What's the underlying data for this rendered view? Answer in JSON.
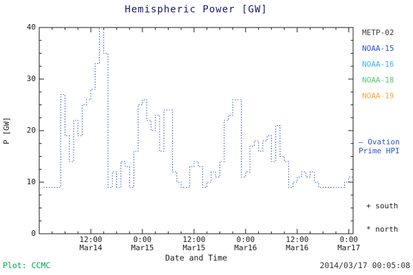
{
  "chart_data": {
    "type": "line",
    "title": "Hemispheric Power [GW]",
    "xlabel": "Date and Time",
    "ylabel": "P [GW]",
    "line": {
      "name": "Ovation Prime HPI",
      "color": "#3a5fcd",
      "style": "dotted-step"
    },
    "ylim": [
      0,
      40
    ],
    "xlim_hours": [
      0,
      73
    ],
    "yticks": [
      0,
      10,
      20,
      30,
      40
    ],
    "xticks": [
      {
        "hour": 12,
        "time": "12:00",
        "date": "Mar14"
      },
      {
        "hour": 24,
        "time": "0:00",
        "date": "Mar15"
      },
      {
        "hour": 36,
        "time": "12:00",
        "date": "Mar15"
      },
      {
        "hour": 48,
        "time": "0:00",
        "date": "Mar16"
      },
      {
        "hour": 60,
        "time": "12:00",
        "date": "Mar16"
      },
      {
        "hour": 72,
        "time": "0:00",
        "date": "Mar17"
      }
    ],
    "x_hours": [
      1,
      2,
      3,
      4,
      5,
      6,
      7,
      8,
      9,
      10,
      11,
      12,
      13,
      14,
      15,
      16,
      17,
      18,
      19,
      20,
      21,
      22,
      23,
      24,
      25,
      26,
      27,
      28,
      29,
      30,
      31,
      32,
      33,
      34,
      35,
      36,
      37,
      38,
      39,
      40,
      41,
      42,
      43,
      44,
      45,
      46,
      47,
      48,
      49,
      50,
      51,
      52,
      53,
      54,
      55,
      56,
      57,
      58,
      59,
      60,
      61,
      62,
      63,
      64,
      65,
      66,
      67,
      68,
      69,
      70,
      71,
      72
    ],
    "values": [
      9,
      9,
      9,
      9,
      27,
      19,
      14,
      22,
      19,
      25,
      26,
      28,
      33,
      40,
      35,
      9,
      12,
      9,
      14,
      13,
      9,
      16,
      25,
      26,
      22,
      20,
      23,
      16,
      24,
      24,
      12,
      10,
      9,
      9,
      13,
      14,
      13,
      9,
      10,
      12,
      11,
      14,
      22,
      23,
      26,
      26,
      11,
      12,
      17,
      18,
      16,
      18,
      19,
      14,
      21,
      15,
      14,
      9,
      10,
      11,
      12,
      11,
      12,
      10,
      9,
      9,
      9,
      9,
      9,
      9,
      10,
      11
    ]
  },
  "legend": {
    "satellites": [
      {
        "label": "METP-02",
        "color": "#3a3a3a"
      },
      {
        "label": "NOAA-15",
        "color": "#2a52cc"
      },
      {
        "label": "NOAA-16",
        "color": "#35b6e8"
      },
      {
        "label": "NOAA-18",
        "color": "#4ecb71"
      },
      {
        "label": "NOAA-19",
        "color": "#f5a93c"
      }
    ],
    "ovation": {
      "line1": "— Ovation",
      "line2": "Prime HPI",
      "color": "#2a52cc"
    },
    "markers": [
      {
        "symbol": "+",
        "label": "south"
      },
      {
        "symbol": "*",
        "label": "north"
      }
    ]
  },
  "footer": {
    "credit": "Plot: CCMC",
    "credit_color": "#00a550",
    "timestamp": "2014/03/17 00:05:08"
  }
}
